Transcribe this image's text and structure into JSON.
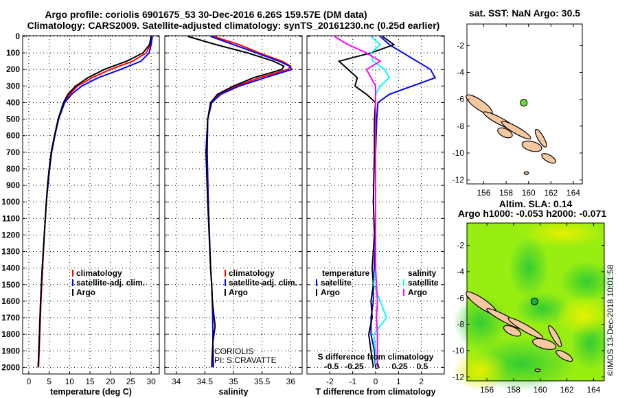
{
  "title_line1": "Argo profile: coriolis 6901675_53 30-Dec-2016 6.26S 159.57E (DM data)",
  "title_line2": "Climatology: CARS2009. Satellite-adjusted climatology: synTS_20161230.nc (0.25d earlier)",
  "colors": {
    "climatology": "#ff0000",
    "satellite": "#0000ff",
    "argo": "#000000",
    "sal_satellite": "#00ffff",
    "sal_argo": "#ff00ff",
    "dot": "#33cc33",
    "land": "#f5c8a0"
  },
  "chart_data": [
    {
      "type": "line",
      "name": "temperature",
      "xlabel": "temperature (deg C)",
      "ylabel": "depth",
      "xlim": [
        -1.5,
        32
      ],
      "ylim": [
        2050,
        0
      ],
      "xticks": [
        0,
        5,
        10,
        15,
        20,
        25,
        30
      ],
      "yticks": [
        0,
        100,
        200,
        300,
        400,
        500,
        600,
        700,
        800,
        900,
        1000,
        1100,
        1200,
        1300,
        1400,
        1500,
        1600,
        1700,
        1800,
        1900,
        2000
      ],
      "depth": [
        0,
        50,
        100,
        150,
        200,
        250,
        300,
        350,
        400,
        500,
        600,
        700,
        800,
        900,
        1000,
        1200,
        1400,
        1600,
        1800,
        2000
      ],
      "series": [
        {
          "name": "climatology",
          "color": "#ff0000",
          "values": [
            30.2,
            29.8,
            28.8,
            25.5,
            20,
            15.5,
            12,
            10,
            8.6,
            7.3,
            6.4,
            5.6,
            5.1,
            4.7,
            4.3,
            3.8,
            3.4,
            3,
            2.7,
            2.4
          ]
        },
        {
          "name": "satellite-adj. clim.",
          "color": "#0000ff",
          "values": [
            30.3,
            30,
            29.5,
            27.5,
            22.5,
            17,
            13,
            10.5,
            8.8,
            7.3,
            6.4,
            5.6,
            5.1,
            4.7,
            4.3,
            3.8,
            3.3,
            2.9,
            2.6,
            2.3
          ]
        },
        {
          "name": "Argo",
          "color": "#000000",
          "values": [
            30,
            29.6,
            28,
            24,
            18.5,
            14.5,
            11.5,
            9.6,
            8.5,
            7.2,
            6.3,
            5.5,
            5,
            4.6,
            4.3,
            3.8,
            3.3,
            2.9,
            2.6,
            2.3
          ]
        }
      ],
      "legend": [
        "climatology",
        "satellite-adj. clim.",
        "Argo"
      ]
    },
    {
      "type": "line",
      "name": "salinity",
      "xlabel": "salinity",
      "xlim": [
        33.8,
        36.2
      ],
      "ylim": [
        2050,
        0
      ],
      "xticks": [
        34,
        34.5,
        35,
        35.5,
        36
      ],
      "depth": [
        0,
        50,
        100,
        150,
        180,
        200,
        250,
        300,
        350,
        400,
        500,
        700,
        1000,
        1400,
        1500,
        1600,
        1750,
        1850,
        2000
      ],
      "series": [
        {
          "name": "climatology",
          "color": "#ff0000",
          "values": [
            34.65,
            35.1,
            35.45,
            35.85,
            36.0,
            35.95,
            35.45,
            35.05,
            34.75,
            34.62,
            34.55,
            34.54,
            34.56,
            34.6,
            34.62,
            34.63,
            34.64,
            34.64,
            34.65
          ]
        },
        {
          "name": "satellite-adj. clim.",
          "color": "#0000ff",
          "values": [
            34.6,
            35.0,
            35.4,
            35.8,
            35.98,
            36.02,
            35.55,
            35.1,
            34.78,
            34.62,
            34.55,
            34.54,
            34.56,
            34.6,
            34.62,
            34.63,
            34.64,
            34.64,
            34.65
          ]
        },
        {
          "name": "Argo",
          "color": "#000000",
          "values": [
            34.2,
            34.7,
            35.25,
            35.7,
            35.88,
            35.85,
            35.35,
            35.0,
            34.72,
            34.6,
            34.55,
            34.52,
            34.55,
            34.6,
            34.62,
            34.63,
            34.68,
            34.64,
            34.62
          ]
        }
      ],
      "legend": [
        "climatology",
        "satellite-adj. clim.",
        "Argo"
      ],
      "annotation": [
        "CORIOLIS",
        "PI: S.CRAVATTE"
      ]
    },
    {
      "type": "line",
      "name": "differences",
      "xlabel": "T difference from climatology",
      "x2label": "S difference from climatology",
      "xlim": [
        -3,
        3
      ],
      "ylim": [
        2050,
        0
      ],
      "xticks": [
        -2,
        -1,
        0,
        1,
        2
      ],
      "x2ticks": [
        "-0.5",
        "-0.25",
        "0",
        "0.25",
        "0.5"
      ],
      "depth": [
        0,
        50,
        100,
        150,
        200,
        250,
        300,
        350,
        400,
        500,
        700,
        1000,
        1200,
        1400,
        1500,
        1600,
        1700,
        1800,
        1900,
        2000
      ],
      "series": [
        {
          "name": "temperature satellite",
          "color": "#0000ff",
          "values": [
            0.2,
            0.6,
            1.2,
            1.8,
            2.4,
            2.6,
            1.6,
            0.6,
            0.1,
            0.05,
            0,
            0,
            0,
            -0.05,
            -0.1,
            -0.1,
            -0.2,
            -0.2,
            -0.05,
            0
          ]
        },
        {
          "name": "temperature Argo",
          "color": "#000000",
          "values": [
            0.3,
            0.8,
            -0.2,
            -1.6,
            -1.2,
            -0.8,
            -0.9,
            -0.4,
            0,
            -0.05,
            -0.05,
            -0.1,
            -0.05,
            -0.15,
            -0.1,
            -0.2,
            -0.15,
            -0.3,
            -0.2,
            -0.1
          ]
        },
        {
          "name": "salinity satellite",
          "color": "#00ffff",
          "values": [
            -0.05,
            0.05,
            -0.05,
            -0.03,
            0.1,
            0.15,
            0.05,
            0,
            0,
            0,
            0,
            0,
            0,
            0,
            -0.02,
            0.05,
            0.12,
            -0.02,
            0,
            0
          ]
        },
        {
          "name": "salinity Argo",
          "color": "#ff00ff",
          "values": [
            -0.45,
            -0.3,
            -0.1,
            0.05,
            -0.1,
            -0.05,
            0,
            0,
            0,
            0,
            0,
            0,
            0,
            0,
            0.01,
            0.02,
            0.01,
            0.02,
            0.02,
            0.02
          ]
        }
      ],
      "legend_temperature_title": "temperature",
      "legend_salinity_title": "salinity",
      "legend_items": [
        "satellite",
        "Argo"
      ]
    }
  ],
  "map_sst": {
    "title": "sat. SST: NaN Argo: 30.5",
    "xticks": [
      156,
      158,
      160,
      162,
      164
    ],
    "yticks": [
      -2,
      -4,
      -6,
      -8,
      -10,
      -12
    ]
  },
  "map_sla": {
    "title1": "Altim. SLA: 0.14",
    "title2": "Argo h1000: -0.053 h2000: -0.071",
    "xticks": [
      156,
      158,
      160,
      162,
      164
    ],
    "yticks": [
      -2,
      -4,
      -6,
      -8,
      -10,
      -12
    ]
  },
  "credit": "©IMOS 13-Dec-2018 10:01:58"
}
